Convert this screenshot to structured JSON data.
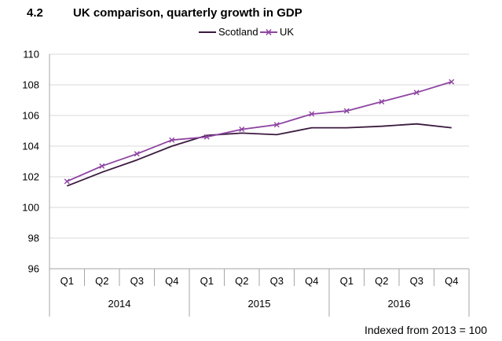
{
  "header": {
    "number": "4.2",
    "title": "UK comparison, quarterly growth in GDP"
  },
  "footnote": "Indexed from 2013  = 100",
  "colors": {
    "scotland": "#3b1a3e",
    "uk": "#8e44a2",
    "axis": "#a6a6a6",
    "grid": "#d9d9d9"
  },
  "chart_data": {
    "type": "line",
    "title": "UK comparison, quarterly growth in GDP",
    "categories": [
      "Q1",
      "Q2",
      "Q3",
      "Q4",
      "Q1",
      "Q2",
      "Q3",
      "Q4",
      "Q1",
      "Q2",
      "Q3",
      "Q4"
    ],
    "years": [
      {
        "label": "2014",
        "span": 4
      },
      {
        "label": "2015",
        "span": 4
      },
      {
        "label": "2016",
        "span": 4
      }
    ],
    "series": [
      {
        "name": "Scotland",
        "marker": "none",
        "values": [
          101.4,
          102.3,
          103.1,
          104.0,
          104.7,
          104.85,
          104.75,
          105.2,
          105.2,
          105.3,
          105.45,
          105.2
        ]
      },
      {
        "name": "UK",
        "marker": "x",
        "values": [
          101.7,
          102.7,
          103.5,
          104.4,
          104.6,
          105.1,
          105.4,
          106.1,
          106.3,
          106.9,
          107.5,
          108.2
        ]
      }
    ],
    "ylim": [
      96,
      110
    ],
    "yticks": [
      96,
      98,
      100,
      102,
      104,
      106,
      108,
      110
    ],
    "grid": true,
    "legend": "top-center"
  }
}
